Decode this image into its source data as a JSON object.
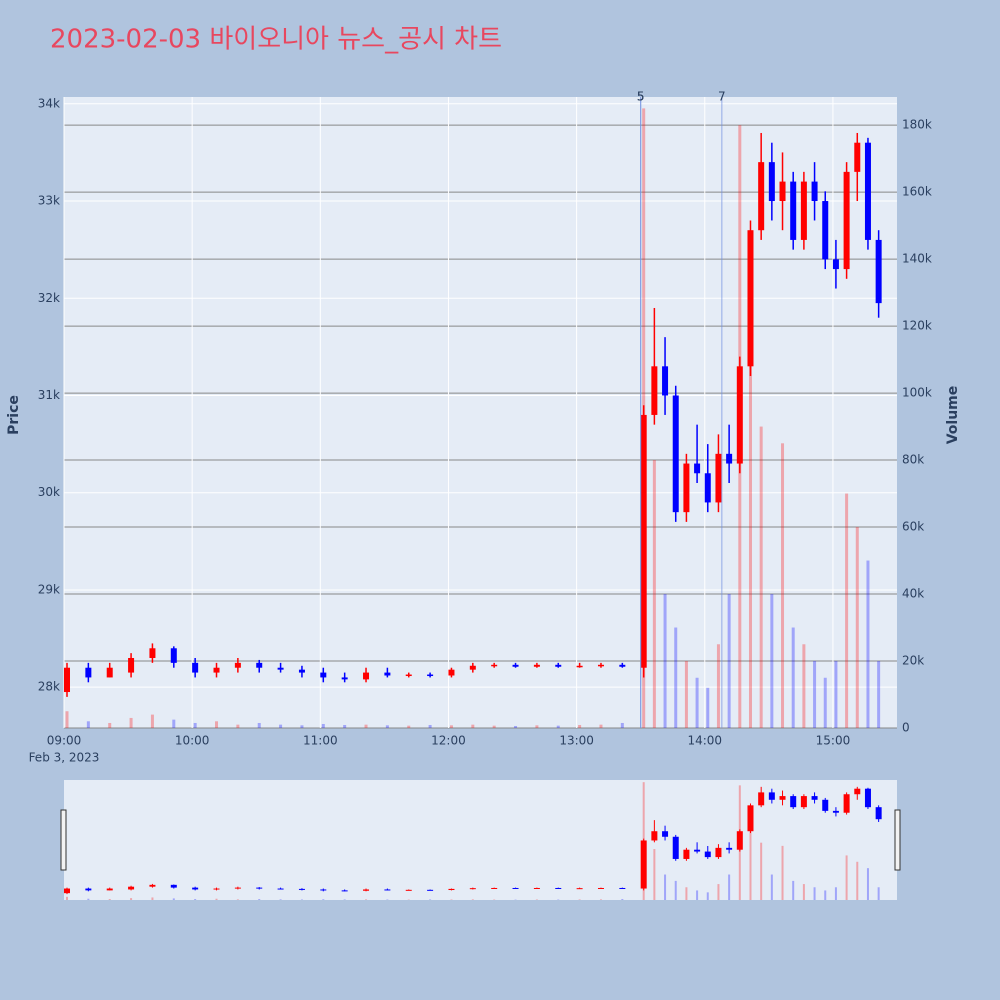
{
  "chart_data": {
    "type": "candlestick",
    "title": "2023-02-03 바이오니아 뉴스_공시 차트",
    "ylabel": "Price",
    "y2label": "Volume",
    "date_label": "Feb 3, 2023",
    "increasing_color": "#ff0000",
    "decreasing_color": "#0000ff",
    "x": [
      "09:00",
      "09:10",
      "09:20",
      "09:30",
      "09:40",
      "09:50",
      "10:00",
      "10:10",
      "10:20",
      "10:30",
      "10:40",
      "10:50",
      "11:00",
      "11:10",
      "11:20",
      "11:30",
      "11:40",
      "11:50",
      "12:00",
      "12:10",
      "12:20",
      "12:30",
      "12:40",
      "12:50",
      "13:00",
      "13:10",
      "13:20",
      "13:30",
      "13:35",
      "13:40",
      "13:45",
      "13:50",
      "13:55",
      "14:00",
      "14:05",
      "14:10",
      "14:15",
      "14:20",
      "14:25",
      "14:30",
      "14:35",
      "14:40",
      "14:45",
      "14:50",
      "14:55",
      "15:00",
      "15:05",
      "15:10",
      "15:15",
      "15:20"
    ],
    "open": [
      27950,
      28200,
      28100,
      28150,
      28300,
      28400,
      28250,
      28150,
      28200,
      28250,
      28200,
      28180,
      28150,
      28100,
      28080,
      28150,
      28120,
      28130,
      28120,
      28180,
      28220,
      28230,
      28210,
      28230,
      28210,
      28220,
      28230,
      28200,
      30800,
      31300,
      31000,
      29800,
      30300,
      30200,
      29900,
      30400,
      30300,
      31300,
      32700,
      33400,
      33000,
      33200,
      32600,
      33200,
      33000,
      32400,
      32300,
      33300,
      33600,
      32600
    ],
    "high": [
      28250,
      28250,
      28250,
      28350,
      28450,
      28420,
      28300,
      28250,
      28300,
      28280,
      28250,
      28220,
      28200,
      28150,
      28200,
      28200,
      28150,
      28150,
      28200,
      28250,
      28250,
      28250,
      28250,
      28250,
      28250,
      28250,
      28250,
      30900,
      31900,
      31600,
      31100,
      30400,
      30700,
      30500,
      30600,
      30700,
      31400,
      32800,
      33700,
      33600,
      33500,
      33300,
      33300,
      33400,
      33100,
      32600,
      33400,
      33700,
      33650,
      32700
    ],
    "low": [
      27900,
      28050,
      28100,
      28100,
      28250,
      28200,
      28100,
      28100,
      28150,
      28150,
      28150,
      28100,
      28050,
      28050,
      28050,
      28100,
      28100,
      28100,
      28100,
      28150,
      28200,
      28200,
      28200,
      28200,
      28200,
      28200,
      28200,
      28100,
      30700,
      30800,
      29700,
      29700,
      30100,
      29800,
      29800,
      30100,
      30200,
      31200,
      32600,
      32800,
      32700,
      32500,
      32500,
      32800,
      32300,
      32100,
      32200,
      33000,
      32500,
      31800
    ],
    "close": [
      28200,
      28100,
      28200,
      28300,
      28400,
      28250,
      28150,
      28200,
      28250,
      28200,
      28180,
      28150,
      28100,
      28080,
      28150,
      28120,
      28130,
      28120,
      28180,
      28220,
      28230,
      28210,
      28230,
      28210,
      28220,
      28230,
      28210,
      30800,
      31300,
      31000,
      29800,
      30300,
      30200,
      29900,
      30400,
      30300,
      31300,
      32700,
      33400,
      33000,
      33200,
      32600,
      33200,
      33000,
      32400,
      32300,
      33300,
      33600,
      32600,
      31950
    ],
    "volume": [
      5000,
      2000,
      1500,
      3000,
      4000,
      2500,
      1500,
      2000,
      1000,
      1500,
      1000,
      800,
      1200,
      900,
      1000,
      800,
      700,
      900,
      800,
      1000,
      700,
      600,
      800,
      700,
      900,
      1000,
      1500,
      185000,
      80000,
      40000,
      30000,
      20000,
      15000,
      12000,
      25000,
      40000,
      180000,
      110000,
      90000,
      40000,
      85000,
      30000,
      25000,
      20000,
      15000,
      20000,
      70000,
      60000,
      50000,
      20000
    ],
    "xlim": [
      "09:00",
      "15:30"
    ],
    "xticks": [
      "09:00",
      "10:00",
      "11:00",
      "12:00",
      "13:00",
      "14:00",
      "15:00"
    ],
    "ylim": [
      27580,
      34070
    ],
    "yticks": [
      {
        "value": 28000,
        "label": "28k"
      },
      {
        "value": 29000,
        "label": "29k"
      },
      {
        "value": 30000,
        "label": "30k"
      },
      {
        "value": 31000,
        "label": "31k"
      },
      {
        "value": 32000,
        "label": "32k"
      },
      {
        "value": 33000,
        "label": "33k"
      },
      {
        "value": 34000,
        "label": "34k"
      }
    ],
    "y2lim": [
      0,
      188400
    ],
    "y2ticks": [
      0,
      {
        "value": 20000,
        "label": "20k"
      },
      {
        "value": 40000,
        "label": "40k"
      },
      {
        "value": 60000,
        "label": "60k"
      },
      {
        "value": 80000,
        "label": "80k"
      },
      {
        "value": 100000,
        "label": "100k"
      },
      {
        "value": 120000,
        "label": "120k"
      },
      {
        "value": 140000,
        "label": "140k"
      },
      {
        "value": 160000,
        "label": "160k"
      },
      {
        "value": 180000,
        "label": "180k"
      }
    ],
    "annotations": [
      {
        "x": "13:30",
        "text": "5"
      },
      {
        "x": "13:30",
        "text": "5"
      },
      {
        "x": "14:08",
        "text": "7"
      }
    ],
    "grid": true
  }
}
